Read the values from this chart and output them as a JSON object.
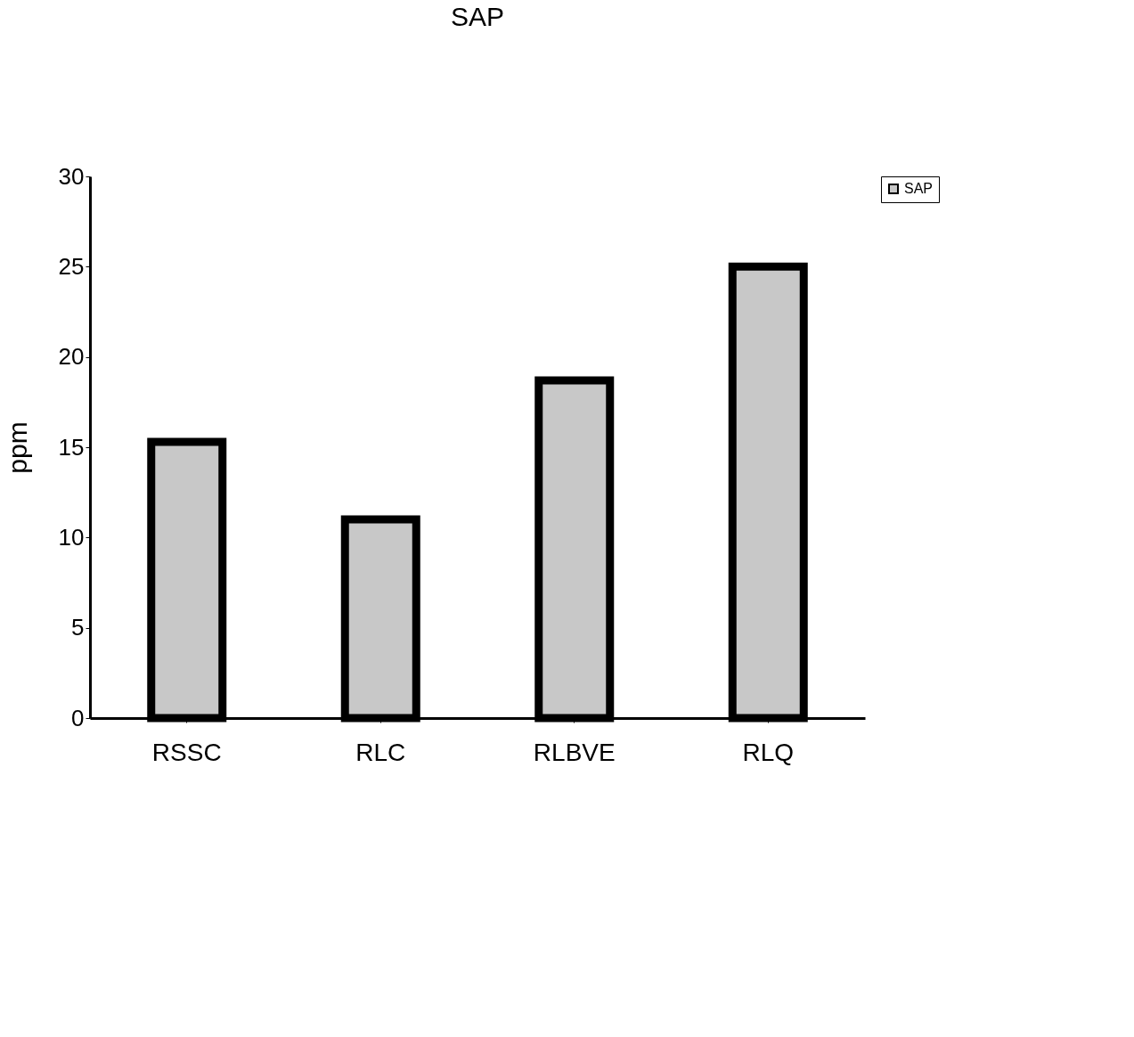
{
  "chart_data": {
    "type": "bar",
    "title": "SAP",
    "ylabel": "ppm",
    "categories": [
      "RSSC",
      "RLC",
      "RLBVE",
      "RLQ"
    ],
    "series": [
      {
        "name": "SAP",
        "color": "#c8c8c8",
        "values": [
          15.3,
          11,
          18.7,
          25
        ]
      }
    ],
    "ylim": [
      0,
      30
    ],
    "yticks": [
      0,
      5,
      10,
      15,
      20,
      25,
      30
    ],
    "grid": false,
    "legend": "right"
  }
}
